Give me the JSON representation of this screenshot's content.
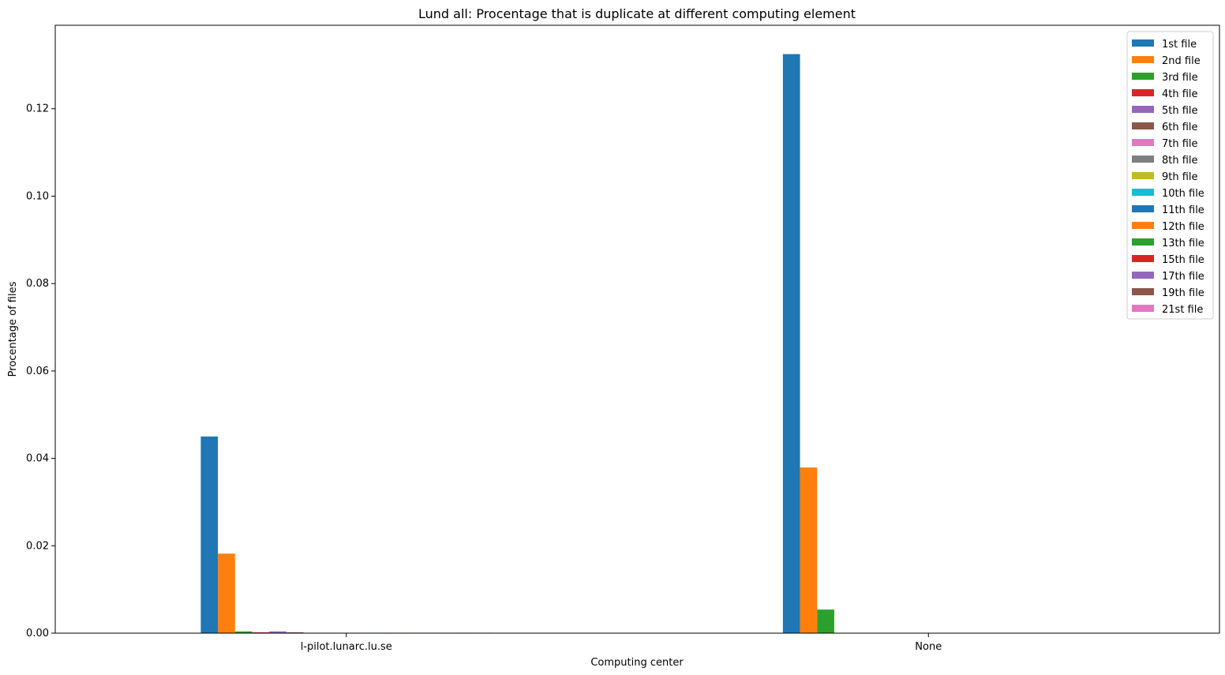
{
  "chart_data": {
    "type": "bar",
    "title": "Lund all: Procentage that is duplicate at different computing element",
    "xlabel": "Computing center",
    "ylabel": "Procentage of files",
    "ylim": [
      0,
      0.1391
    ],
    "yticks": [
      "0.00",
      "0.02",
      "0.04",
      "0.06",
      "0.08",
      "0.10",
      "0.12"
    ],
    "categories": [
      "l-pilot.lunarc.lu.se",
      "None"
    ],
    "legend_position": "top-right",
    "grid": false,
    "series": [
      {
        "name": "1st file",
        "color": "#1f77b4",
        "values": [
          0.045,
          0.1325
        ]
      },
      {
        "name": "2nd file",
        "color": "#ff7f0e",
        "values": [
          0.0182,
          0.0379
        ]
      },
      {
        "name": "3rd file",
        "color": "#2ca02c",
        "values": [
          0.0004,
          0.0054
        ]
      },
      {
        "name": "4th file",
        "color": "#d62728",
        "values": [
          0.0002,
          0
        ]
      },
      {
        "name": "5th file",
        "color": "#9467bd",
        "values": [
          0.0004,
          0
        ]
      },
      {
        "name": "6th file",
        "color": "#8c564b",
        "values": [
          0.0002,
          0
        ]
      },
      {
        "name": "7th file",
        "color": "#e377c2",
        "values": [
          0.0001,
          0
        ]
      },
      {
        "name": "8th file",
        "color": "#7f7f7f",
        "values": [
          0.0001,
          0
        ]
      },
      {
        "name": "9th file",
        "color": "#bcbd22",
        "values": [
          0.0001,
          0
        ]
      },
      {
        "name": "10th file",
        "color": "#17becf",
        "values": [
          0.0001,
          0
        ]
      },
      {
        "name": "11th file",
        "color": "#1f77b4",
        "values": [
          0.0001,
          0
        ]
      },
      {
        "name": "12th file",
        "color": "#ff7f0e",
        "values": [
          0.0001,
          0
        ]
      },
      {
        "name": "13th file",
        "color": "#2ca02c",
        "values": [
          0.0001,
          0
        ]
      },
      {
        "name": "15th file",
        "color": "#d62728",
        "values": [
          0.0001,
          0
        ]
      },
      {
        "name": "17th file",
        "color": "#9467bd",
        "values": [
          0.0001,
          0
        ]
      },
      {
        "name": "19th file",
        "color": "#8c564b",
        "values": [
          0.0001,
          0
        ]
      },
      {
        "name": "21st file",
        "color": "#e377c2",
        "values": [
          0.0001,
          0
        ]
      }
    ]
  }
}
